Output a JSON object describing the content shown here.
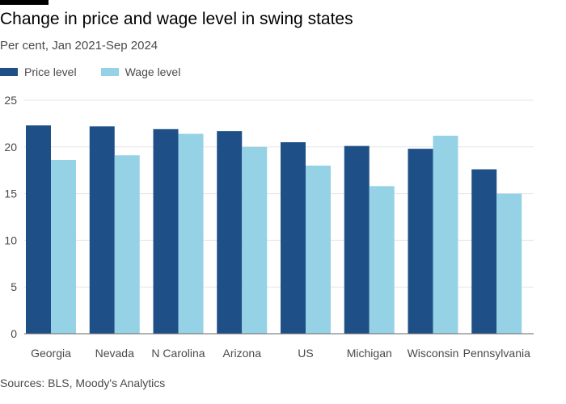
{
  "header": {
    "title": "Change in price and wage level in swing states",
    "subtitle": "Per cent, Jan 2021-Sep 2024"
  },
  "source": "Sources: BLS, Moody's Analytics",
  "colors": {
    "price": "#1e5087",
    "wage": "#96d2e6",
    "grid": "#e6e6e6",
    "axis": "#666666",
    "text": "#4a4a4a"
  },
  "chart_data": {
    "type": "bar",
    "categories": [
      "Georgia",
      "Nevada",
      "N Carolina",
      "Arizona",
      "US",
      "Michigan",
      "Wisconsin",
      "Pennsylvania"
    ],
    "series": [
      {
        "name": "Price level",
        "color": "#1e5087",
        "values": [
          22.3,
          22.2,
          21.9,
          21.7,
          20.5,
          20.1,
          19.8,
          17.6
        ]
      },
      {
        "name": "Wage level",
        "color": "#96d2e6",
        "values": [
          18.6,
          19.1,
          21.4,
          20.0,
          18.0,
          15.8,
          21.2,
          15.0
        ]
      }
    ],
    "yticks": [
      0,
      5,
      10,
      15,
      20,
      25
    ],
    "ylim": [
      0,
      25
    ],
    "grid": true,
    "legend_position": "top-left"
  }
}
